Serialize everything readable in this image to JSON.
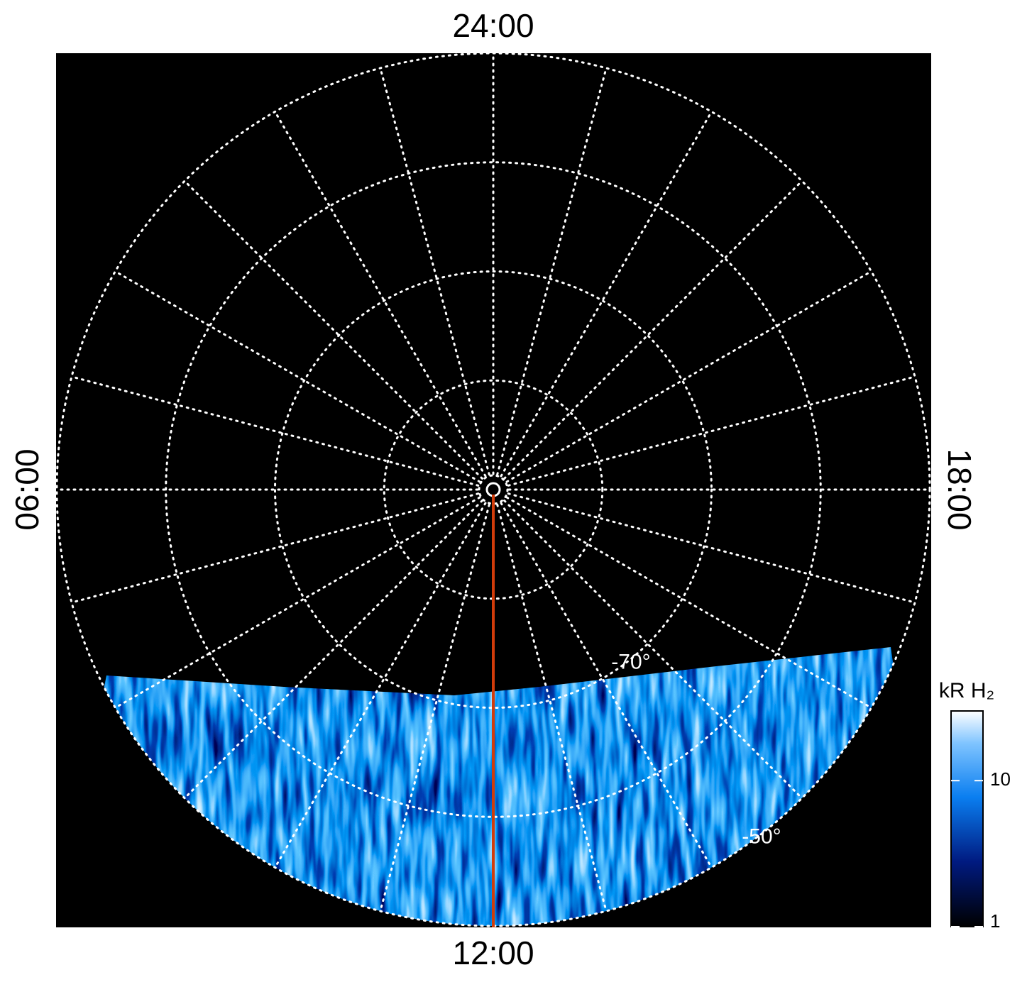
{
  "chart_data": {
    "type": "polar",
    "theta_labels": [
      {
        "value": 24,
        "label": "24:00"
      },
      {
        "value": 6,
        "label": "06:00"
      },
      {
        "value": 12,
        "label": "12:00"
      },
      {
        "value": 18,
        "label": "18:00"
      }
    ],
    "thetagrid": [
      1,
      2,
      3,
      4,
      5,
      6,
      7,
      8,
      9,
      10,
      11,
      12,
      13,
      14,
      15,
      16,
      17,
      18,
      19,
      20,
      21,
      22,
      23,
      24
    ],
    "rlim": [
      -90,
      -50
    ],
    "rgrid": [
      -80,
      -70,
      -60,
      -50
    ],
    "rticks": [
      {
        "value": -70,
        "label": "-70°"
      },
      {
        "value": -50,
        "label": "-50°"
      }
    ],
    "colorbar": {
      "label": "kR H₂",
      "scale": "log",
      "lim": [
        1,
        30
      ],
      "ticks": [
        1,
        10
      ]
    }
  }
}
